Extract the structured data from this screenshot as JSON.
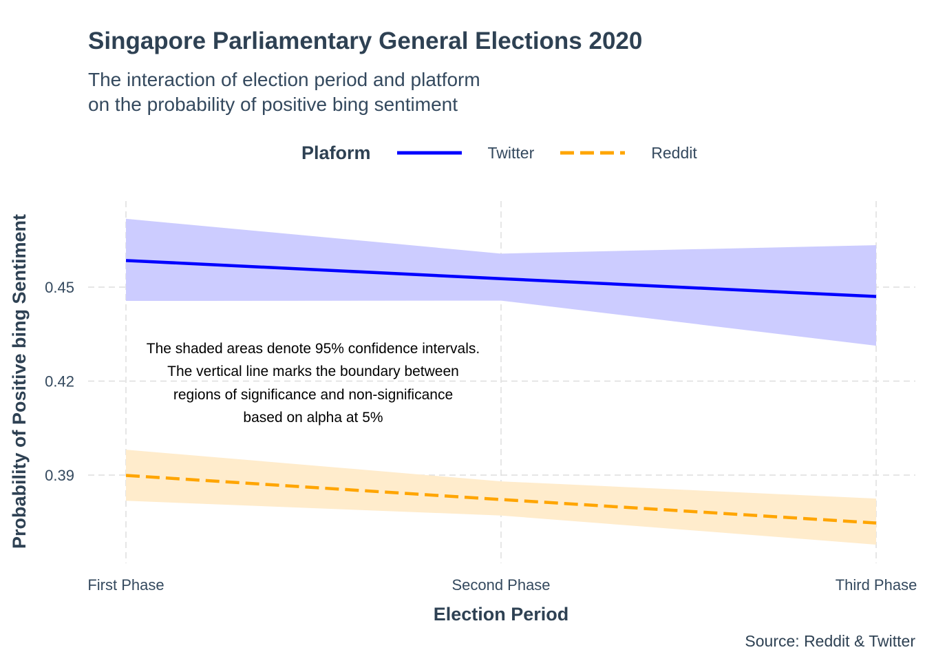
{
  "title": "Singapore Parliamentary General Elections 2020",
  "subtitle_lines": [
    "The interaction of election period and platform",
    "on the probability of positive bing sentiment"
  ],
  "legend": {
    "title": "Plaform",
    "position": "top",
    "items": [
      {
        "label": "Twitter",
        "color": "#0000ff",
        "linetype": "solid"
      },
      {
        "label": "Reddit",
        "color": "#ffa500",
        "linetype": "dashed"
      }
    ]
  },
  "caption": "Source: Reddit & Twitter",
  "annotation_lines": [
    "The shaded areas denote 95% confidence intervals.",
    "The vertical line marks the boundary between",
    "regions of significance and non-significance",
    "based on alpha at 5%"
  ],
  "chart_data": {
    "type": "line",
    "title": "Singapore Parliamentary General Elections 2020",
    "xlabel": "Election Period",
    "ylabel": "Probability of Positive bing Sentiment",
    "categories": [
      "First Phase",
      "Second Phase",
      "Third Phase"
    ],
    "ylim": [
      0.3617,
      0.4785
    ],
    "yticks": [
      0.39,
      0.42,
      0.45
    ],
    "ytick_labels": [
      "0.39",
      "0.42",
      "0.45"
    ],
    "grid": true,
    "series": [
      {
        "name": "Twitter",
        "color": "#0000ff",
        "band_color": "#ccccff",
        "linetype": "solid",
        "values": [
          0.4585,
          0.4527,
          0.447
        ],
        "ci_upper": [
          0.4718,
          0.4607,
          0.4634
        ],
        "ci_lower": [
          0.4456,
          0.4457,
          0.4313
        ]
      },
      {
        "name": "Reddit",
        "color": "#ffa500",
        "band_color": "#ffeccc",
        "linetype": "dashed",
        "values": [
          0.3899,
          0.3822,
          0.3747
        ],
        "ci_upper": [
          0.3981,
          0.388,
          0.3825
        ],
        "ci_lower": [
          0.3818,
          0.3771,
          0.3678
        ]
      }
    ]
  }
}
